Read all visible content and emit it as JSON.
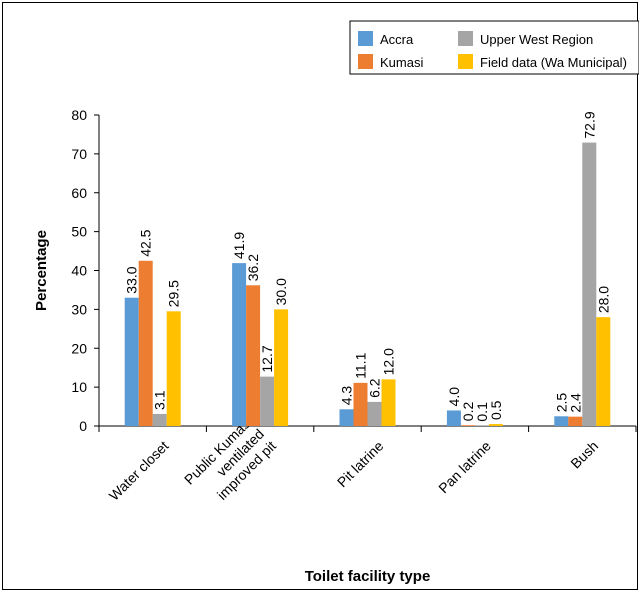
{
  "chart_data": {
    "type": "bar",
    "title": "",
    "xlabel": "Toilet facility type",
    "ylabel": "Percentage",
    "ylim": [
      0,
      80
    ],
    "yticks": [
      0,
      10,
      20,
      30,
      40,
      50,
      60,
      70,
      80
    ],
    "grid": false,
    "legend_position": "top-right",
    "categories": [
      [
        "Water closet"
      ],
      [
        "Public Kumasi",
        "ventilated",
        "improved pit"
      ],
      [
        "Pit latrine"
      ],
      [
        "Pan latrine"
      ],
      [
        "Bush"
      ]
    ],
    "series": [
      {
        "name": "Accra",
        "color": "#5B9BD5",
        "values": [
          33.0,
          41.9,
          4.3,
          4.0,
          2.5
        ],
        "labels": [
          "33.0",
          "41.9",
          "4.3",
          "4.0",
          "2.5"
        ]
      },
      {
        "name": "Kumasi",
        "color": "#ED7D31",
        "values": [
          42.5,
          36.2,
          11.1,
          0.2,
          2.4
        ],
        "labels": [
          "42.5",
          "36.2",
          "11.1",
          "0.2",
          "2.4"
        ]
      },
      {
        "name": "Upper West Region",
        "color": "#A5A5A5",
        "values": [
          3.1,
          12.7,
          6.2,
          0.1,
          72.9
        ],
        "labels": [
          "3.1",
          "12.7",
          "6.2",
          "0.1",
          "72.9"
        ]
      },
      {
        "name": "Field data (Wa Municipal)",
        "color": "#FFC000",
        "values": [
          29.5,
          30.0,
          12.0,
          0.5,
          28.0
        ],
        "labels": [
          "29.5",
          "30.0",
          "12.0",
          "0.5",
          "28.0"
        ]
      }
    ]
  }
}
